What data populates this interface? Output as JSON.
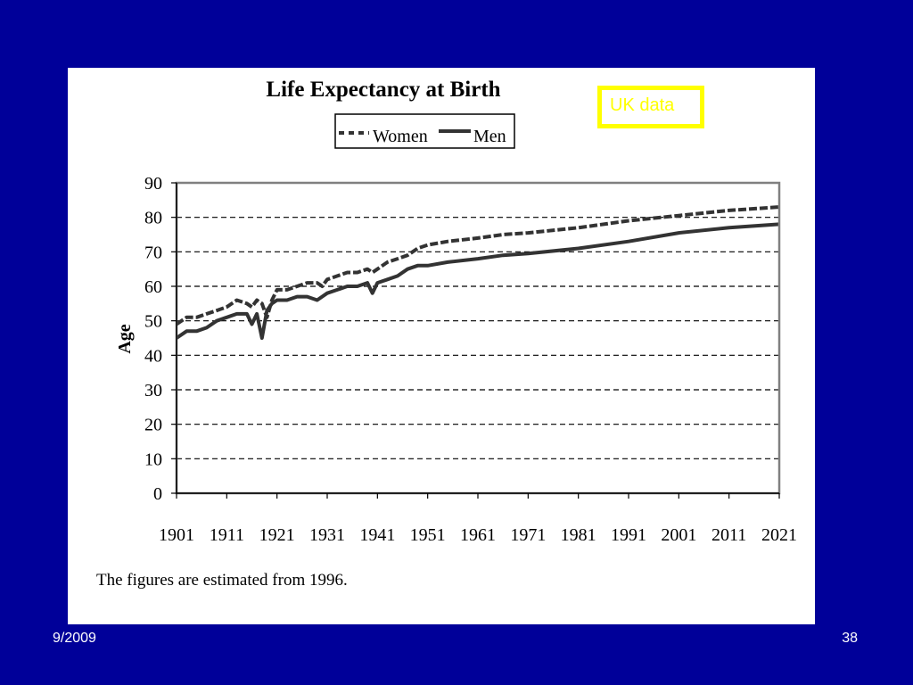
{
  "slide": {
    "footer_left": "9/2009",
    "footer_right": "38",
    "note": "UK data"
  },
  "colors": {
    "background": "#000099",
    "panel": "#ffffff",
    "note_border": "#ffff00",
    "note_text": "#ffff00",
    "series": "#333333",
    "gridline": "#000000"
  },
  "chart_data": {
    "type": "line",
    "title": "Life Expectancy at Birth",
    "xlabel": "",
    "ylabel": "Age",
    "xlim": [
      1901,
      2021
    ],
    "ylim": [
      0,
      90
    ],
    "x_ticks": [
      1901,
      1911,
      1921,
      1931,
      1941,
      1951,
      1961,
      1971,
      1981,
      1991,
      2001,
      2011,
      2021
    ],
    "y_ticks": [
      0,
      10,
      20,
      30,
      40,
      50,
      60,
      70,
      80,
      90
    ],
    "grid": "horizontal dashed",
    "legend_position": "top-center",
    "footnote": "The figures are estimated from 1996.",
    "series": [
      {
        "name": "Women",
        "line_style": "dashed",
        "points": [
          [
            1901,
            49
          ],
          [
            1903,
            51
          ],
          [
            1905,
            51
          ],
          [
            1907,
            52
          ],
          [
            1909,
            53
          ],
          [
            1911,
            54
          ],
          [
            1913,
            56
          ],
          [
            1915,
            55
          ],
          [
            1916,
            54
          ],
          [
            1917,
            56
          ],
          [
            1918,
            55
          ],
          [
            1919,
            51
          ],
          [
            1920,
            56
          ],
          [
            1921,
            59
          ],
          [
            1923,
            59
          ],
          [
            1925,
            60
          ],
          [
            1927,
            61
          ],
          [
            1929,
            61
          ],
          [
            1930,
            60
          ],
          [
            1931,
            62
          ],
          [
            1933,
            63
          ],
          [
            1935,
            64
          ],
          [
            1937,
            64
          ],
          [
            1939,
            65
          ],
          [
            1940,
            64
          ],
          [
            1941,
            65
          ],
          [
            1943,
            67
          ],
          [
            1945,
            68
          ],
          [
            1947,
            69
          ],
          [
            1949,
            71
          ],
          [
            1951,
            72
          ],
          [
            1955,
            73
          ],
          [
            1961,
            74
          ],
          [
            1966,
            75
          ],
          [
            1971,
            75.5
          ],
          [
            1981,
            77
          ],
          [
            1991,
            79
          ],
          [
            2001,
            80.5
          ],
          [
            2011,
            82
          ],
          [
            2021,
            83
          ]
        ]
      },
      {
        "name": "Men",
        "line_style": "solid",
        "points": [
          [
            1901,
            45
          ],
          [
            1903,
            47
          ],
          [
            1905,
            47
          ],
          [
            1907,
            48
          ],
          [
            1909,
            50
          ],
          [
            1911,
            51
          ],
          [
            1913,
            52
          ],
          [
            1915,
            52
          ],
          [
            1916,
            49
          ],
          [
            1917,
            52
          ],
          [
            1918,
            45
          ],
          [
            1919,
            53
          ],
          [
            1920,
            55
          ],
          [
            1921,
            56
          ],
          [
            1923,
            56
          ],
          [
            1925,
            57
          ],
          [
            1927,
            57
          ],
          [
            1929,
            56
          ],
          [
            1931,
            58
          ],
          [
            1933,
            59
          ],
          [
            1935,
            60
          ],
          [
            1937,
            60
          ],
          [
            1939,
            61
          ],
          [
            1940,
            58
          ],
          [
            1941,
            61
          ],
          [
            1943,
            62
          ],
          [
            1945,
            63
          ],
          [
            1947,
            65
          ],
          [
            1949,
            66
          ],
          [
            1951,
            66
          ],
          [
            1955,
            67
          ],
          [
            1961,
            68
          ],
          [
            1966,
            69
          ],
          [
            1971,
            69.5
          ],
          [
            1981,
            71
          ],
          [
            1991,
            73
          ],
          [
            2001,
            75.5
          ],
          [
            2011,
            77
          ],
          [
            2021,
            78
          ]
        ]
      }
    ]
  }
}
